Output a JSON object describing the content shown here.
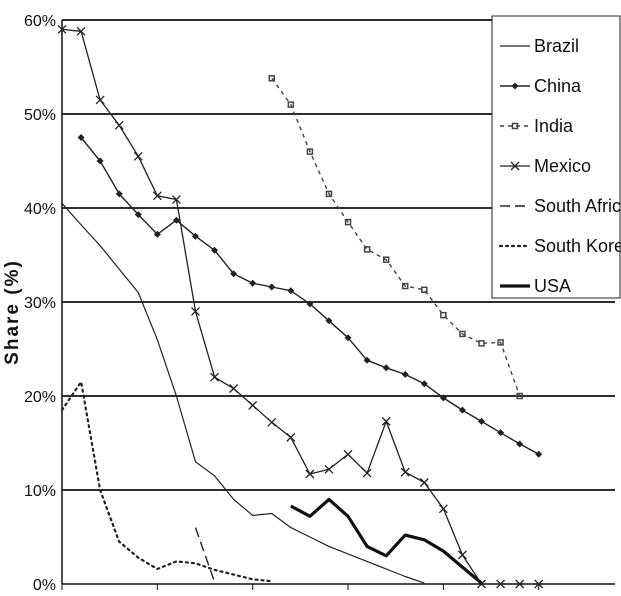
{
  "chart_data": {
    "type": "line",
    "ylabel": "Share (%)",
    "ylim": [
      0,
      60
    ],
    "y_ticks": [
      "0%",
      "10%",
      "20%",
      "30%",
      "40%",
      "50%",
      "60%"
    ],
    "grid": true,
    "legend_position": "top-right",
    "x_count": 30,
    "series": [
      {
        "name": "Brazil",
        "color": "#222222",
        "style": "solid-thin",
        "values": [
          40.5,
          38.2,
          36.0,
          33.5,
          31.0,
          26.0,
          20.0,
          13.0,
          11.5,
          9.0,
          7.3,
          7.5,
          6.0,
          5.0,
          4.0,
          3.2,
          2.4,
          1.6,
          0.8,
          0.1,
          null,
          null,
          null,
          null,
          null,
          null,
          null,
          null,
          null,
          null
        ]
      },
      {
        "name": "China",
        "color": "#222222",
        "style": "solid-marker-diamond",
        "values": [
          null,
          47.5,
          45.0,
          41.5,
          39.3,
          37.2,
          38.7,
          37.0,
          35.5,
          33.0,
          32.0,
          31.6,
          31.2,
          29.8,
          28.0,
          26.2,
          23.8,
          23.0,
          22.3,
          21.3,
          19.8,
          18.5,
          17.3,
          16.1,
          14.9,
          13.8,
          null,
          null,
          null,
          null
        ]
      },
      {
        "name": "India",
        "color": "#444444",
        "style": "dashed-marker-square",
        "values": [
          null,
          null,
          null,
          null,
          null,
          null,
          null,
          null,
          null,
          null,
          null,
          53.8,
          51.0,
          46.0,
          41.5,
          38.5,
          35.6,
          34.5,
          31.7,
          31.3,
          28.6,
          26.6,
          25.6,
          25.7,
          20.0,
          null,
          null,
          null,
          null,
          null
        ]
      },
      {
        "name": "Mexico",
        "color": "#222222",
        "style": "solid-marker-x",
        "values": [
          59.0,
          58.8,
          51.5,
          48.8,
          45.5,
          41.3,
          40.9,
          29.0,
          22.0,
          20.8,
          19.0,
          17.2,
          15.6,
          11.7,
          12.2,
          13.8,
          11.8,
          17.3,
          11.9,
          10.8,
          8.0,
          3.1,
          0.0,
          0.0,
          0.0,
          0.0,
          null,
          null,
          null,
          null
        ]
      },
      {
        "name": "South Africa",
        "color": "#222222",
        "style": "long-dash",
        "values": [
          null,
          null,
          null,
          null,
          null,
          null,
          null,
          6.0,
          0.2,
          null,
          null,
          null,
          null,
          null,
          null,
          null,
          null,
          null,
          null,
          null,
          null,
          null,
          null,
          null,
          null,
          null,
          null,
          null,
          null,
          null
        ]
      },
      {
        "name": "South Korea",
        "color": "#222222",
        "style": "dotted",
        "values": [
          18.5,
          21.5,
          10.0,
          4.5,
          2.8,
          1.6,
          2.4,
          2.2,
          1.5,
          1.0,
          0.5,
          0.3,
          null,
          null,
          null,
          null,
          null,
          null,
          null,
          null,
          null,
          null,
          null,
          null,
          null,
          null,
          null,
          null,
          null,
          null
        ]
      },
      {
        "name": "USA",
        "color": "#111111",
        "style": "solid-thick",
        "values": [
          null,
          null,
          null,
          null,
          null,
          null,
          null,
          null,
          null,
          null,
          null,
          null,
          8.3,
          7.2,
          9.0,
          7.2,
          4.0,
          3.0,
          5.2,
          4.7,
          3.5,
          1.8,
          0.1,
          null,
          null,
          null,
          null,
          null,
          null,
          null
        ]
      }
    ]
  }
}
